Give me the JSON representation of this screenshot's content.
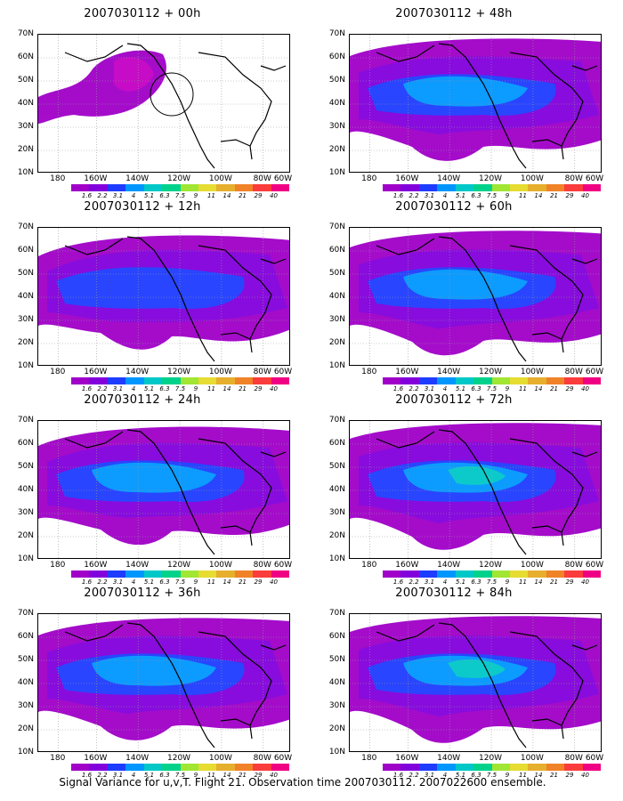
{
  "panels": [
    {
      "title": "2007030112 + 00h"
    },
    {
      "title": "2007030112 + 48h"
    },
    {
      "title": "2007030112 + 12h"
    },
    {
      "title": "2007030112 + 60h"
    },
    {
      "title": "2007030112 + 24h"
    },
    {
      "title": "2007030112 + 72h"
    },
    {
      "title": "2007030112 + 36h"
    },
    {
      "title": "2007030112 + 84h"
    }
  ],
  "lat_labels": [
    "70N",
    "60N",
    "50N",
    "40N",
    "30N",
    "20N",
    "10N"
  ],
  "lon_labels": [
    "180",
    "160W",
    "140W",
    "120W",
    "100W",
    "80W",
    "60W"
  ],
  "colorbar": {
    "colors": [
      "#a000c8",
      "#8200dc",
      "#1e3cff",
      "#0096ff",
      "#00c8c8",
      "#00d28c",
      "#a0e632",
      "#e6dc32",
      "#e6af2d",
      "#f08228",
      "#fa3c3c",
      "#f00082"
    ],
    "labels": [
      "1.6",
      "2.2",
      "3.1",
      "4",
      "5.1",
      "6.3",
      "7.5",
      "9",
      "11",
      "14",
      "21",
      "29",
      "40"
    ]
  },
  "footer": "Signal Variance for u,v,T. Flight 21. Observation time 2007030112. 2007022600 ensemble."
}
